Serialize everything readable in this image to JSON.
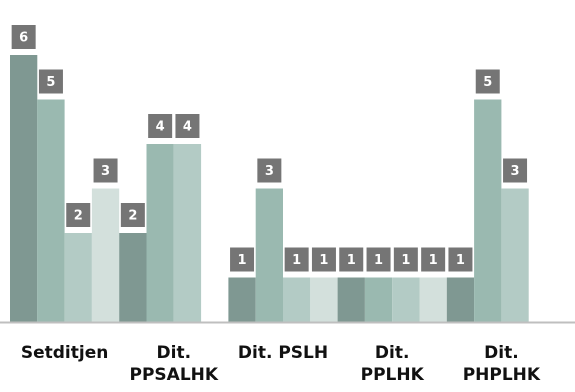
{
  "chart_data": {
    "type": "bar",
    "title": "",
    "xlabel": "",
    "ylabel": "",
    "ylim": [
      0,
      6
    ],
    "grid": false,
    "legend": "none",
    "categories": [
      [
        "Setditjen"
      ],
      [
        "Dit.",
        "PPSALHK"
      ],
      [
        "Dit. PSLH"
      ],
      [
        "Dit.",
        "PPLHK"
      ],
      [
        "Dit.",
        "PHPLHK"
      ]
    ],
    "series": [
      {
        "values": [
          6,
          2,
          1,
          1,
          1
        ],
        "color": "#7f9892"
      },
      {
        "values": [
          5,
          4,
          3,
          1,
          5
        ],
        "color": "#9ab9b0"
      },
      {
        "values": [
          2,
          4,
          1,
          1,
          3
        ],
        "color": "#b3cbc5"
      },
      {
        "values": [
          3,
          null,
          1,
          1,
          null
        ],
        "color": "#d3e0dc"
      }
    ],
    "label_box_color": "#757575",
    "baseline_color": "#bfbfbf"
  }
}
